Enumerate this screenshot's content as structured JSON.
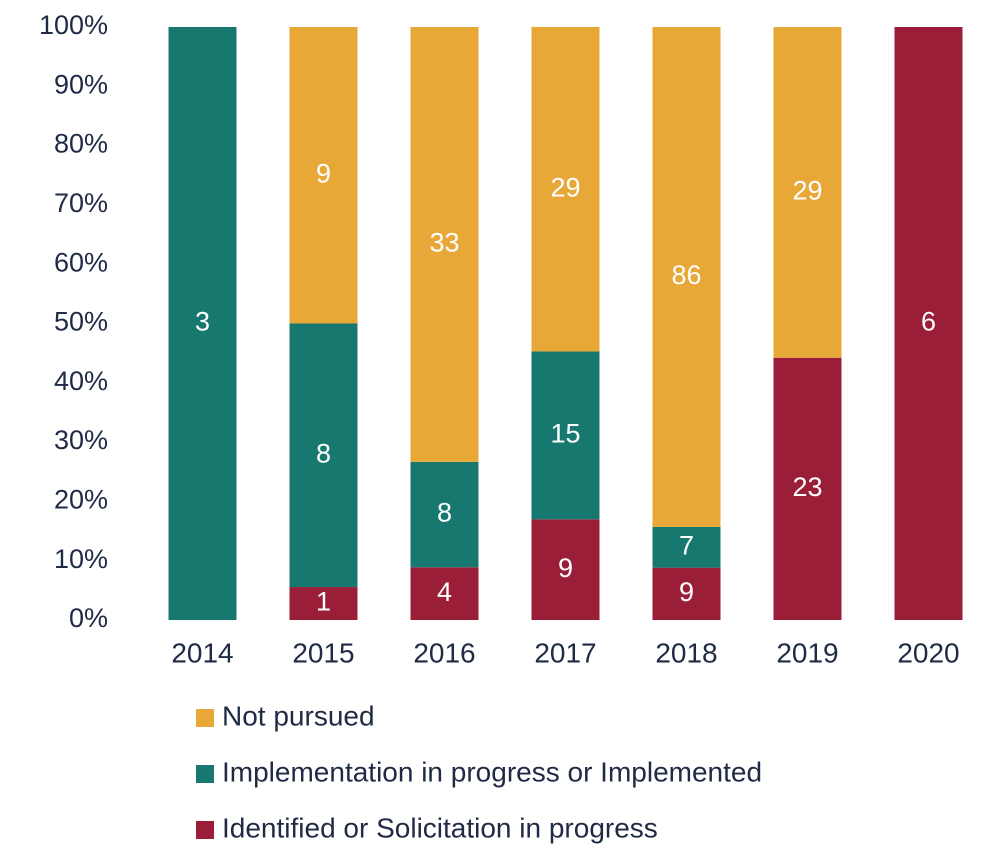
{
  "chart_data": {
    "type": "bar",
    "stacking": "percent",
    "categories": [
      "2014",
      "2015",
      "2016",
      "2017",
      "2018",
      "2019",
      "2020"
    ],
    "series": [
      {
        "name": "Not pursued",
        "color": "#e8a838",
        "values": [
          null,
          9,
          33,
          29,
          86,
          29,
          null
        ]
      },
      {
        "name": "Implementation in progress or Implemented",
        "color": "#17786f",
        "values": [
          3,
          8,
          8,
          15,
          7,
          null,
          null
        ]
      },
      {
        "name": "Identified or Solicitation in progress",
        "color": "#9b1e38",
        "values": [
          null,
          1,
          4,
          9,
          9,
          23,
          6
        ]
      }
    ],
    "ylim": [
      0,
      100
    ],
    "yticks": [
      {
        "value": 0,
        "label": "0%"
      },
      {
        "value": 10,
        "label": "10%"
      },
      {
        "value": 20,
        "label": "20%"
      },
      {
        "value": 30,
        "label": "30%"
      },
      {
        "value": 40,
        "label": "40%"
      },
      {
        "value": 50,
        "label": "50%"
      },
      {
        "value": 60,
        "label": "60%"
      },
      {
        "value": 70,
        "label": "70%"
      },
      {
        "value": 80,
        "label": "80%"
      },
      {
        "value": 90,
        "label": "90%"
      },
      {
        "value": 100,
        "label": "100%"
      }
    ],
    "grid": false,
    "legend": "bottom"
  }
}
